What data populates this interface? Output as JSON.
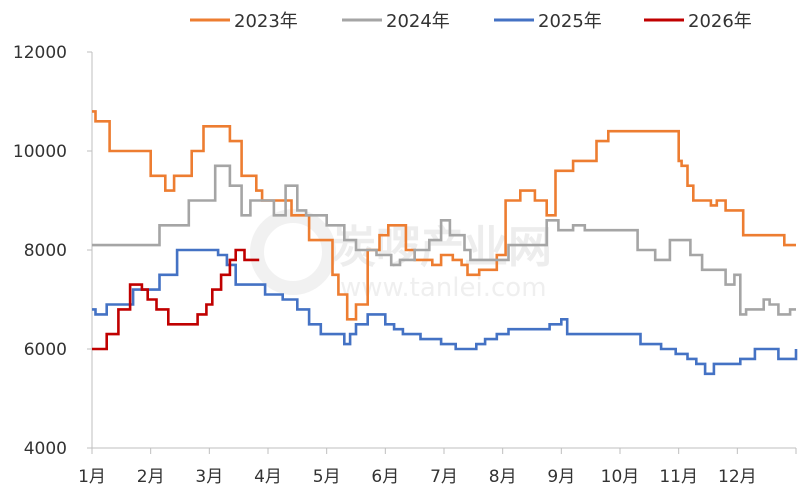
{
  "chart_data": {
    "type": "line",
    "title": "",
    "xlabel": "",
    "ylabel": "",
    "x_unit": "month",
    "xlim": [
      0,
      12
    ],
    "ylim": [
      4000,
      12000
    ],
    "yticks": [
      4000,
      6000,
      8000,
      10000,
      12000
    ],
    "ytick_labels": [
      "4000",
      "6000",
      "8000",
      "10000",
      "12000"
    ],
    "xtick_labels": [
      "1月",
      "2月",
      "3月",
      "4月",
      "5月",
      "6月",
      "7月",
      "8月",
      "9月",
      "10月",
      "11月",
      "12月"
    ],
    "grid": false,
    "legend_position": "top",
    "watermark": {
      "text": "炭啰产业网",
      "url": "www.tanlei.com"
    },
    "series": [
      {
        "name": "2023年",
        "color": "#ED7D31",
        "points": [
          [
            0.0,
            10800
          ],
          [
            0.06,
            10600
          ],
          [
            0.3,
            10000
          ],
          [
            1.0,
            9500
          ],
          [
            1.25,
            9200
          ],
          [
            1.4,
            9500
          ],
          [
            1.7,
            10000
          ],
          [
            1.9,
            10500
          ],
          [
            2.35,
            10200
          ],
          [
            2.55,
            9500
          ],
          [
            2.8,
            9200
          ],
          [
            2.9,
            9000
          ],
          [
            3.4,
            8700
          ],
          [
            3.7,
            8200
          ],
          [
            4.1,
            7500
          ],
          [
            4.2,
            7100
          ],
          [
            4.35,
            6600
          ],
          [
            4.5,
            6900
          ],
          [
            4.7,
            8000
          ],
          [
            4.9,
            8300
          ],
          [
            5.05,
            8500
          ],
          [
            5.35,
            8000
          ],
          [
            5.5,
            7800
          ],
          [
            5.8,
            7700
          ],
          [
            5.95,
            7900
          ],
          [
            6.15,
            7800
          ],
          [
            6.3,
            7700
          ],
          [
            6.4,
            7500
          ],
          [
            6.6,
            7600
          ],
          [
            6.9,
            7900
          ],
          [
            7.05,
            9000
          ],
          [
            7.3,
            9200
          ],
          [
            7.55,
            9000
          ],
          [
            7.75,
            8700
          ],
          [
            7.9,
            9600
          ],
          [
            8.2,
            9800
          ],
          [
            8.6,
            10200
          ],
          [
            8.8,
            10400
          ],
          [
            9.8,
            10400
          ],
          [
            10.0,
            9800
          ],
          [
            10.05,
            9700
          ],
          [
            10.15,
            9300
          ],
          [
            10.25,
            9000
          ],
          [
            10.55,
            8900
          ],
          [
            10.65,
            9000
          ],
          [
            10.8,
            8800
          ],
          [
            11.1,
            8300
          ],
          [
            11.8,
            8100
          ],
          [
            12.0,
            8100
          ]
        ]
      },
      {
        "name": "2024年",
        "color": "#A5A5A5",
        "points": [
          [
            0.0,
            8100
          ],
          [
            1.15,
            8500
          ],
          [
            1.65,
            9000
          ],
          [
            2.1,
            9700
          ],
          [
            2.35,
            9300
          ],
          [
            2.55,
            8700
          ],
          [
            2.7,
            9000
          ],
          [
            3.1,
            8700
          ],
          [
            3.3,
            9300
          ],
          [
            3.5,
            8800
          ],
          [
            3.65,
            8700
          ],
          [
            4.0,
            8500
          ],
          [
            4.3,
            8200
          ],
          [
            4.5,
            8000
          ],
          [
            4.85,
            7900
          ],
          [
            5.1,
            7700
          ],
          [
            5.25,
            7800
          ],
          [
            5.5,
            8000
          ],
          [
            5.75,
            8200
          ],
          [
            5.95,
            8600
          ],
          [
            6.1,
            8300
          ],
          [
            6.35,
            8000
          ],
          [
            6.45,
            7800
          ],
          [
            7.0,
            7800
          ],
          [
            7.1,
            8100
          ],
          [
            7.75,
            8600
          ],
          [
            7.95,
            8400
          ],
          [
            8.2,
            8500
          ],
          [
            8.4,
            8400
          ],
          [
            9.1,
            8400
          ],
          [
            9.3,
            8000
          ],
          [
            9.6,
            7800
          ],
          [
            9.85,
            8200
          ],
          [
            10.05,
            8200
          ],
          [
            10.2,
            7900
          ],
          [
            10.4,
            7600
          ],
          [
            10.8,
            7300
          ],
          [
            10.95,
            7500
          ],
          [
            11.05,
            6700
          ],
          [
            11.15,
            6800
          ],
          [
            11.45,
            7000
          ],
          [
            11.55,
            6900
          ],
          [
            11.7,
            6700
          ],
          [
            11.9,
            6800
          ],
          [
            12.0,
            6800
          ]
        ]
      },
      {
        "name": "2025年",
        "color": "#4472C4",
        "points": [
          [
            0.0,
            6800
          ],
          [
            0.06,
            6700
          ],
          [
            0.25,
            6900
          ],
          [
            0.7,
            7200
          ],
          [
            1.15,
            7500
          ],
          [
            1.45,
            8000
          ],
          [
            2.15,
            7900
          ],
          [
            2.3,
            7700
          ],
          [
            2.45,
            7300
          ],
          [
            2.95,
            7100
          ],
          [
            3.25,
            7000
          ],
          [
            3.5,
            6800
          ],
          [
            3.7,
            6500
          ],
          [
            3.9,
            6300
          ],
          [
            4.3,
            6100
          ],
          [
            4.4,
            6300
          ],
          [
            4.5,
            6500
          ],
          [
            4.7,
            6700
          ],
          [
            5.0,
            6500
          ],
          [
            5.15,
            6400
          ],
          [
            5.3,
            6300
          ],
          [
            5.6,
            6200
          ],
          [
            5.95,
            6100
          ],
          [
            6.2,
            6000
          ],
          [
            6.55,
            6100
          ],
          [
            6.7,
            6200
          ],
          [
            6.9,
            6300
          ],
          [
            7.1,
            6400
          ],
          [
            7.55,
            6400
          ],
          [
            7.8,
            6500
          ],
          [
            8.0,
            6600
          ],
          [
            8.1,
            6300
          ],
          [
            9.25,
            6300
          ],
          [
            9.35,
            6100
          ],
          [
            9.7,
            6000
          ],
          [
            9.95,
            5900
          ],
          [
            10.15,
            5800
          ],
          [
            10.3,
            5700
          ],
          [
            10.45,
            5500
          ],
          [
            10.6,
            5700
          ],
          [
            11.05,
            5800
          ],
          [
            11.3,
            6000
          ],
          [
            11.7,
            5800
          ],
          [
            12.0,
            6000
          ]
        ]
      },
      {
        "name": "2026年",
        "color": "#C00000",
        "points": [
          [
            0.0,
            6000
          ],
          [
            0.25,
            6300
          ],
          [
            0.45,
            6800
          ],
          [
            0.65,
            7300
          ],
          [
            0.85,
            7200
          ],
          [
            0.95,
            7000
          ],
          [
            1.1,
            6800
          ],
          [
            1.3,
            6500
          ],
          [
            1.75,
            6500
          ],
          [
            1.8,
            6700
          ],
          [
            1.95,
            6900
          ],
          [
            2.05,
            7200
          ],
          [
            2.2,
            7500
          ],
          [
            2.35,
            7800
          ],
          [
            2.45,
            8000
          ],
          [
            2.6,
            7800
          ],
          [
            2.85,
            7800
          ]
        ]
      }
    ]
  }
}
